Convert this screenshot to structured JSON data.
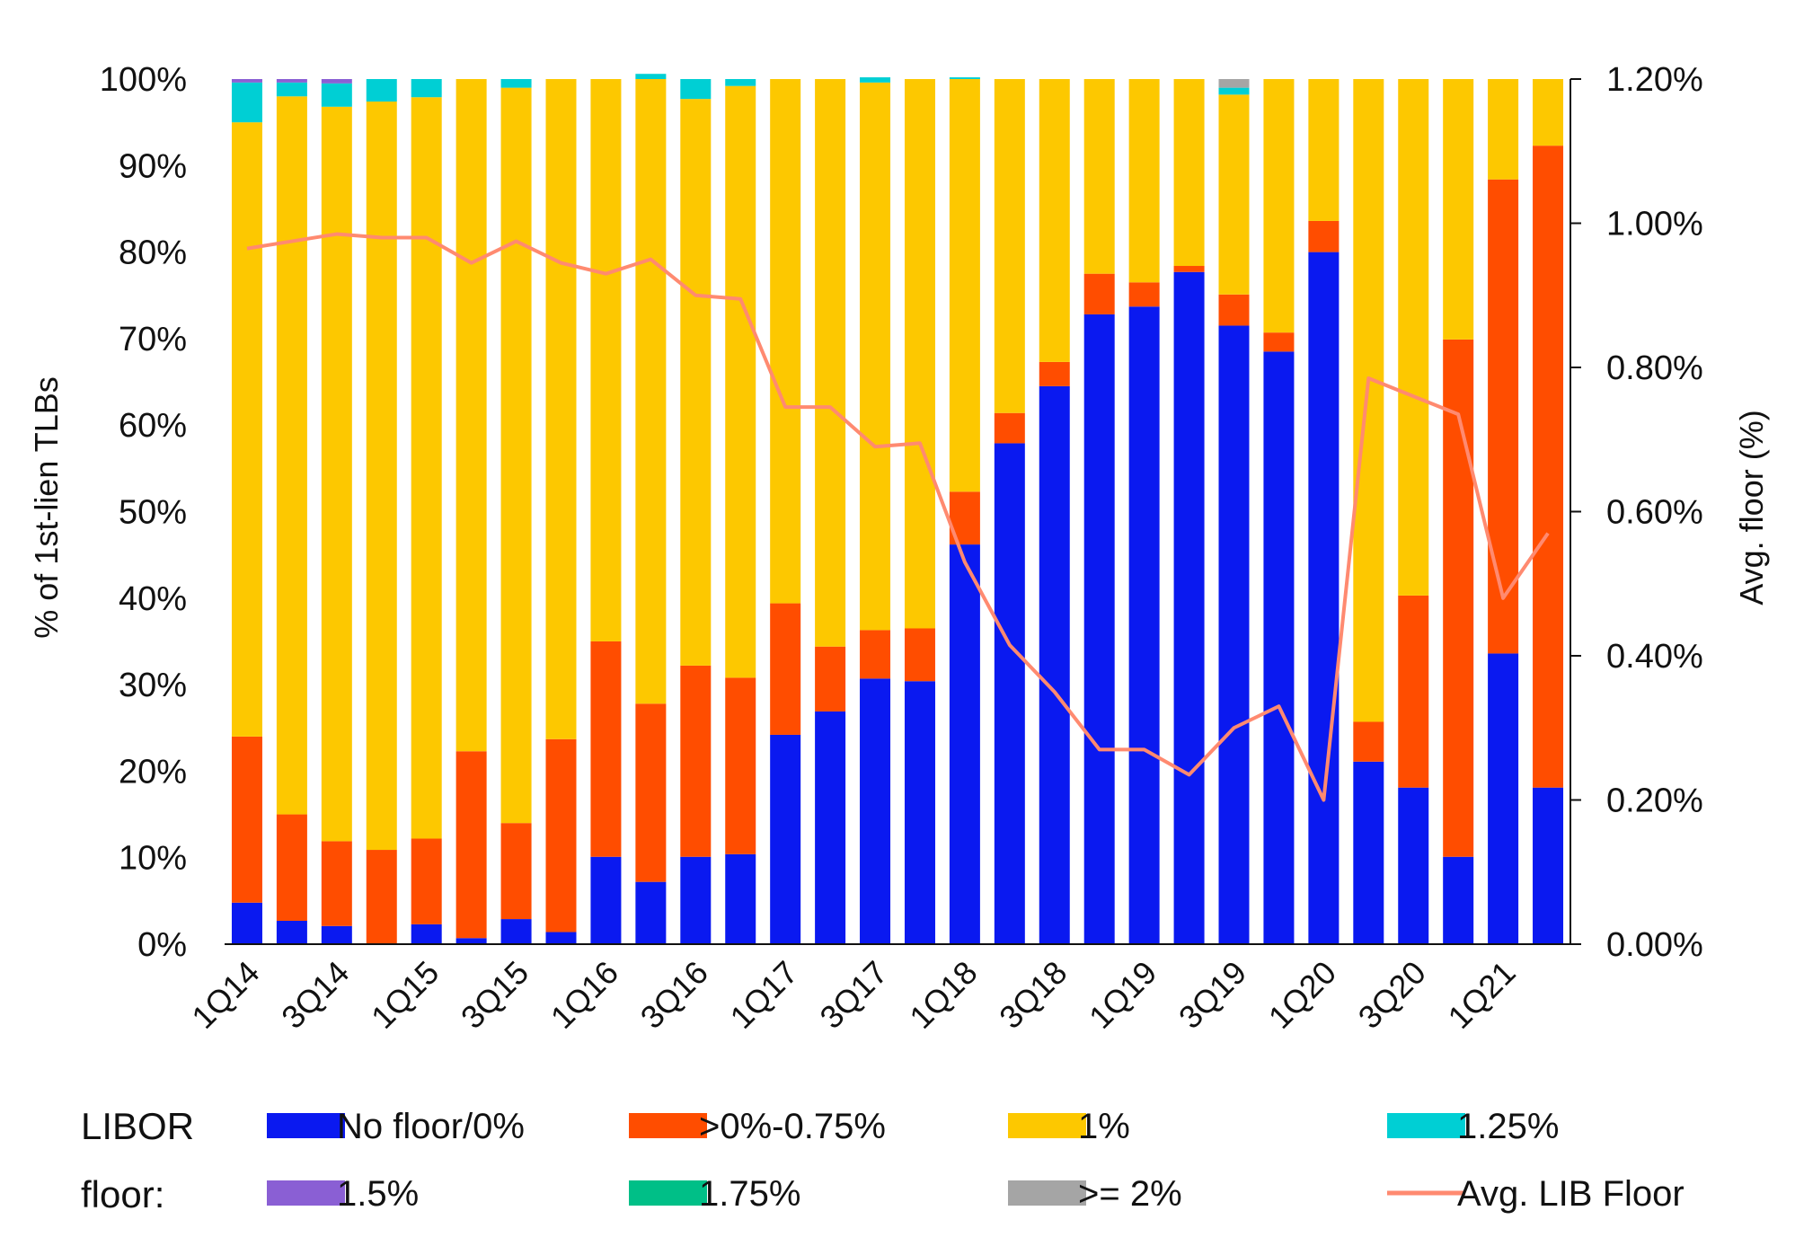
{
  "chart_data": {
    "type": "bar",
    "stacked": true,
    "categories": [
      "1Q14",
      "2Q14",
      "3Q14",
      "4Q14",
      "1Q15",
      "2Q15",
      "3Q15",
      "4Q15",
      "1Q16",
      "2Q16",
      "3Q16",
      "4Q16",
      "1Q17",
      "2Q17",
      "3Q17",
      "4Q17",
      "1Q18",
      "2Q18",
      "3Q18",
      "4Q18",
      "1Q19",
      "2Q19",
      "3Q19",
      "4Q19",
      "1Q20",
      "2Q20",
      "3Q20",
      "4Q20",
      "1Q21",
      "2Q21"
    ],
    "x_tick_labels": [
      "1Q14",
      "3Q14",
      "1Q15",
      "3Q15",
      "1Q16",
      "3Q16",
      "1Q17",
      "3Q17",
      "1Q18",
      "3Q18",
      "1Q19",
      "3Q19",
      "1Q20",
      "3Q20",
      "1Q21"
    ],
    "ylabel": "% of 1st-lien TLBs",
    "ylabel_right": "Avg. floor (%)",
    "ylim": [
      0,
      100
    ],
    "ylim_right": [
      0,
      1.2
    ],
    "y_ticks": [
      "0%",
      "10%",
      "20%",
      "30%",
      "40%",
      "50%",
      "60%",
      "70%",
      "80%",
      "90%",
      "100%"
    ],
    "y_ticks_right": [
      "0.00%",
      "0.20%",
      "0.40%",
      "0.60%",
      "0.80%",
      "1.00%",
      "1.20%"
    ],
    "legend_title": [
      "LIBOR",
      "floor:"
    ],
    "legend_position": "bottom",
    "series": [
      {
        "name": "No floor/0%",
        "color": "#0a19f0",
        "values": [
          4.8,
          2.7,
          2.1,
          0,
          2.3,
          0.7,
          2.9,
          1.4,
          10.1,
          7.2,
          10.1,
          10.4,
          24.2,
          26.9,
          30.7,
          30.4,
          46.2,
          57.9,
          64.5,
          72.8,
          73.7,
          77.7,
          71.5,
          68.5,
          80.0,
          21.1,
          18.1,
          10.1,
          33.6,
          18.1
        ]
      },
      {
        "name": ">0%-0.75%",
        "color": "#ff4d00",
        "values": [
          19.2,
          12.3,
          9.8,
          10.9,
          9.9,
          21.6,
          11.1,
          22.3,
          24.9,
          20.6,
          22.1,
          20.4,
          15.2,
          7.5,
          5.6,
          6.1,
          6.1,
          3.5,
          2.8,
          4.7,
          2.8,
          0.7,
          3.6,
          2.2,
          3.6,
          4.6,
          22.2,
          59.8,
          54.8,
          74.2
        ]
      },
      {
        "name": "1%",
        "color": "#fdc800",
        "values": [
          71.0,
          83.0,
          84.9,
          86.5,
          85.7,
          77.7,
          85.0,
          76.3,
          65.0,
          72.2,
          65.5,
          68.4,
          60.6,
          65.6,
          63.3,
          63.5,
          47.7,
          38.6,
          32.7,
          22.5,
          23.5,
          21.6,
          23.1,
          29.3,
          16.4,
          74.3,
          59.7,
          30.1,
          11.6,
          7.7
        ]
      },
      {
        "name": "1.25%",
        "color": "#00cfd4",
        "values": [
          4.6,
          1.6,
          2.7,
          2.6,
          2.1,
          0,
          1.0,
          0,
          0,
          0.6,
          2.3,
          0.8,
          0,
          0,
          0.6,
          0,
          0.2,
          0,
          0,
          0,
          0,
          0,
          0.8,
          0,
          0,
          0,
          0,
          0,
          0,
          0
        ]
      },
      {
        "name": "1.5%",
        "color": "#8a5fd4",
        "values": [
          0.4,
          0.4,
          0.5,
          0,
          0,
          0,
          0,
          0,
          0,
          0,
          0,
          0,
          0,
          0,
          0,
          0,
          0,
          0,
          0,
          0,
          0,
          0,
          0,
          0,
          0,
          0,
          0,
          0,
          0,
          0
        ]
      },
      {
        "name": "1.75%",
        "color": "#00bf87",
        "values": [
          0,
          0,
          0,
          0,
          0,
          0,
          0,
          0,
          0,
          0,
          0,
          0,
          0,
          0,
          0,
          0,
          0,
          0,
          0,
          0,
          0,
          0,
          0,
          0,
          0,
          0,
          0,
          0,
          0,
          0
        ]
      },
      {
        "name": ">= 2%",
        "color": "#a5a5a5",
        "values": [
          0,
          0,
          0,
          0,
          0,
          0,
          0,
          0,
          0,
          0,
          0,
          0,
          0,
          0,
          0,
          0,
          0,
          0,
          0,
          0,
          0,
          0,
          1.0,
          0,
          0,
          0,
          0,
          0,
          0,
          0
        ]
      }
    ],
    "line_series": {
      "name": "Avg. LIB Floor",
      "color": "#ff8a70",
      "axis": "right",
      "values": [
        0.965,
        0.975,
        0.985,
        0.98,
        0.98,
        0.945,
        0.975,
        0.945,
        0.93,
        0.95,
        0.9,
        0.895,
        0.745,
        0.745,
        0.69,
        0.695,
        0.53,
        0.415,
        0.35,
        0.27,
        0.27,
        0.235,
        0.3,
        0.33,
        0.2,
        0.785,
        0.76,
        0.735,
        0.48,
        0.57
      ]
    }
  }
}
